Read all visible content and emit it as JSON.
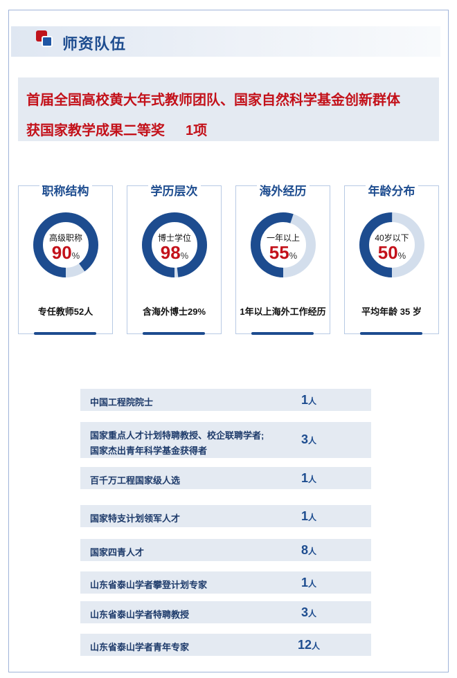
{
  "section": {
    "title": "师资队伍"
  },
  "honors": {
    "line1": "首届全国高校黄大年式教师团队、国家自然科学基金创新群体",
    "line2": "获国家教学成果二等奖",
    "line2_count": "1项"
  },
  "stats": [
    {
      "title": "职称结构",
      "label": "高级职称",
      "value": "90",
      "percent": 90,
      "caption": "专任教师52人"
    },
    {
      "title": "学历层次",
      "label": "博士学位",
      "value": "98",
      "percent": 98,
      "caption": "含海外博士29%"
    },
    {
      "title": "海外经历",
      "label": "一年以上",
      "value": "55",
      "percent": 55,
      "caption": "1年以上海外工作经历"
    },
    {
      "title": "年龄分布",
      "label": "40岁以下",
      "value": "50",
      "percent": 50,
      "caption": "平均年龄 35 岁"
    }
  ],
  "percent_sign": "%",
  "colors": {
    "accent": "#1d4c8f",
    "ring_track": "#d3deec",
    "highlight": "#c3111a"
  },
  "talents": [
    {
      "name": "中国工程院院士",
      "count": "1",
      "unit": "人"
    },
    {
      "name": "国家重点人才计划特聘教授、校企联聘学者;",
      "name2": "国家杰出青年科学基金获得者",
      "count": "3",
      "unit": "人"
    },
    {
      "name": "百千万工程国家级人选",
      "count": "1",
      "unit": "人"
    },
    {
      "name": "国家特支计划领军人才",
      "count": "1",
      "unit": "人"
    },
    {
      "name": "国家四青人才",
      "count": "8",
      "unit": "人"
    },
    {
      "name": "山东省泰山学者攀登计划专家",
      "count": "1",
      "unit": "人"
    },
    {
      "name": "山东省泰山学者特聘教授",
      "count": "3",
      "unit": "人"
    },
    {
      "name": "山东省泰山学者青年专家",
      "count": "12",
      "unit": "人"
    }
  ]
}
